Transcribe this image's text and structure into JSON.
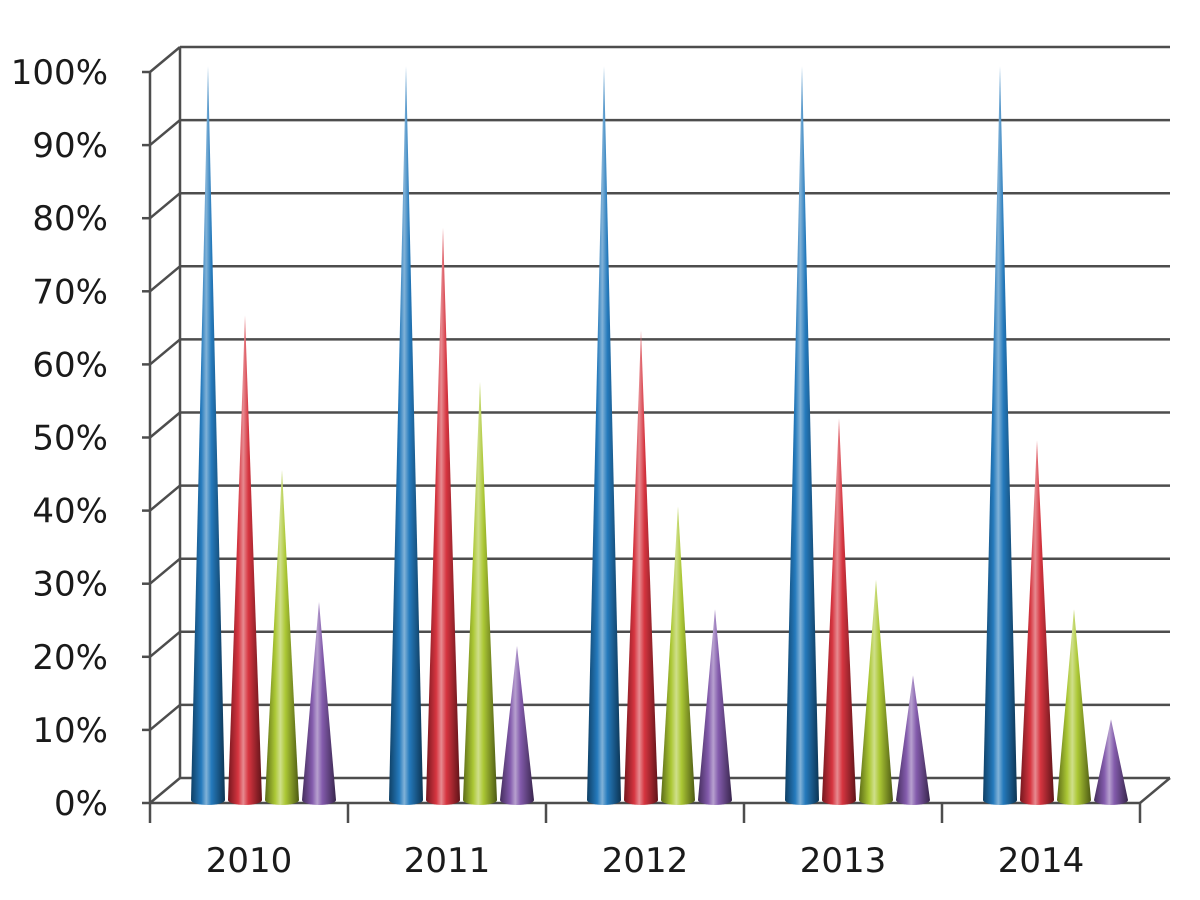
{
  "chart_data": {
    "type": "bar",
    "style": "3d-cone",
    "categories": [
      "2010",
      "2011",
      "2012",
      "2013",
      "2014"
    ],
    "series": [
      {
        "values": [
          100,
          100,
          100,
          100,
          100
        ],
        "color": "#1a73b8"
      },
      {
        "values": [
          66,
          78,
          64,
          52,
          49
        ],
        "color": "#d42a36"
      },
      {
        "values": [
          45,
          57,
          40,
          30,
          26
        ],
        "color": "#a8c52a"
      },
      {
        "values": [
          27,
          21,
          26,
          17,
          11
        ],
        "color": "#7c52a8"
      }
    ],
    "ylim": [
      0,
      100
    ],
    "y_ticks": [
      "0%",
      "10%",
      "20%",
      "30%",
      "40%",
      "50%",
      "60%",
      "70%",
      "80%",
      "90%",
      "100%"
    ],
    "grid": true,
    "legend": "none"
  }
}
